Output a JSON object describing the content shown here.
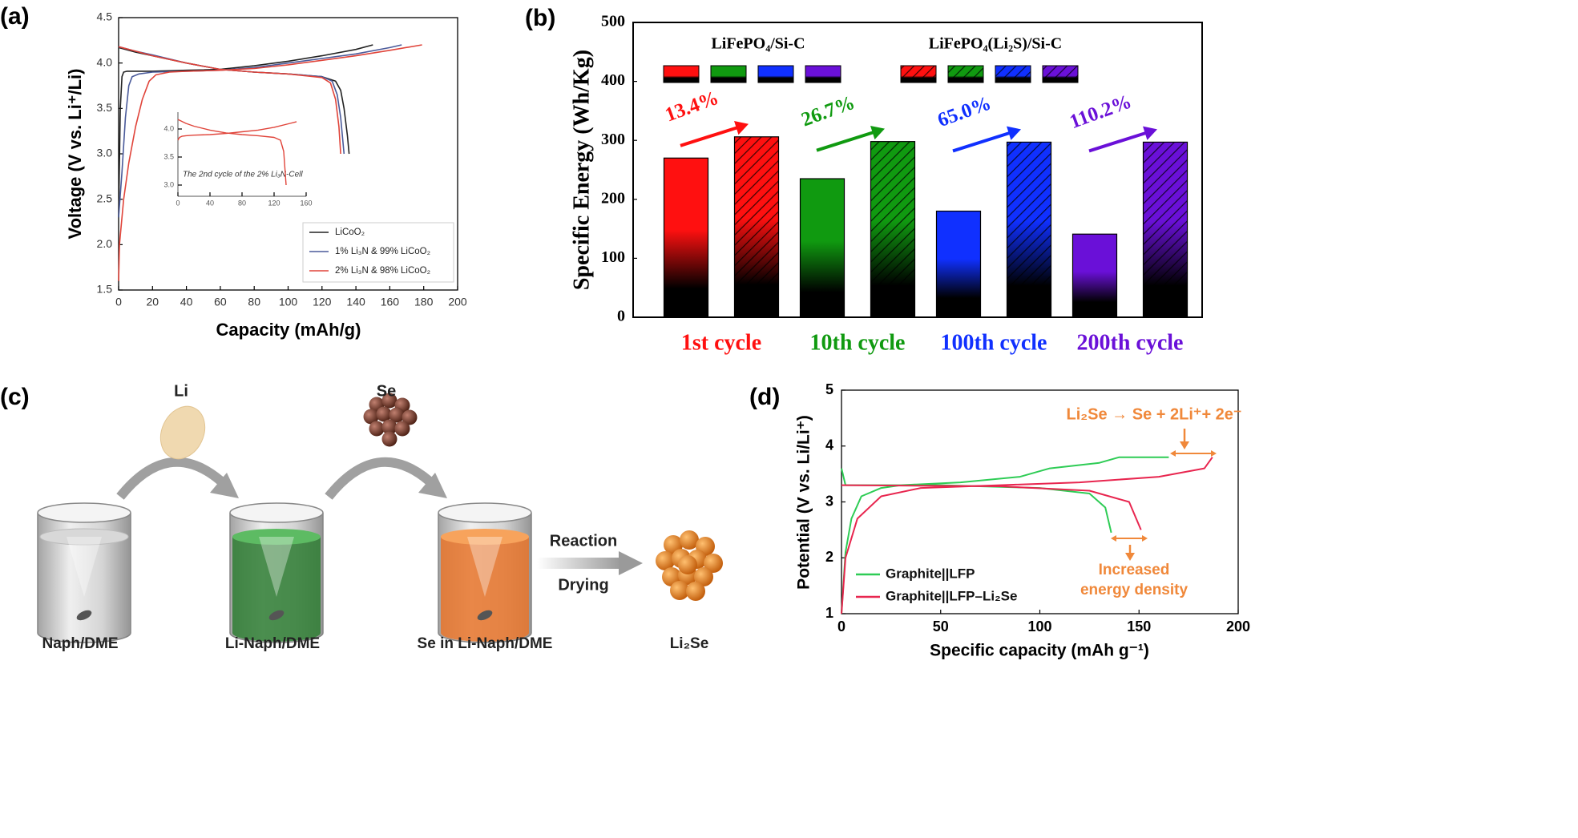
{
  "chart_data": [
    {
      "type": "line",
      "panel_label": "(a)",
      "x_label": "Capacity (mAh/g)",
      "y_label": "Voltage (V vs. Li⁺/Li)",
      "xlim": [
        0,
        200
      ],
      "xticks": [
        0,
        20,
        40,
        60,
        80,
        100,
        120,
        140,
        160,
        180,
        200
      ],
      "ylim": [
        1.5,
        4.5
      ],
      "yticks": [
        1.5,
        {
          "value": 2,
          "label": "2.0"
        },
        2.5,
        {
          "value": 3,
          "label": "3.0"
        },
        3.5,
        {
          "value": 4,
          "label": "4.0"
        },
        4.5
      ],
      "legend": "lower right",
      "series": [
        {
          "name": "LiCoO₂",
          "color": "#222222",
          "x": [
            0,
            1,
            2,
            3,
            5,
            10,
            20,
            40,
            60,
            80,
            100,
            120,
            140,
            150,
            null,
            0,
            10,
            20,
            40,
            60,
            80,
            100,
            120,
            128,
            131,
            133,
            135,
            136
          ],
          "values": [
            2.3,
            3.5,
            3.85,
            3.9,
            3.91,
            3.91,
            3.91,
            3.92,
            3.93,
            3.97,
            4.02,
            4.08,
            4.15,
            4.2,
            null,
            4.17,
            4.12,
            4.08,
            4.0,
            3.93,
            3.9,
            3.88,
            3.85,
            3.8,
            3.7,
            3.5,
            3.2,
            3.0
          ]
        },
        {
          "name": "1% Li₃N & 99% LiCoO₂",
          "color": "#4a5a9a",
          "x": [
            0,
            2,
            4,
            6,
            8,
            12,
            20,
            40,
            60,
            80,
            100,
            120,
            140,
            160,
            167,
            null,
            0,
            10,
            20,
            40,
            60,
            80,
            100,
            120,
            126,
            129,
            131,
            132,
            133
          ],
          "values": [
            2.3,
            2.8,
            3.4,
            3.75,
            3.85,
            3.88,
            3.9,
            3.91,
            3.92,
            3.95,
            4.0,
            4.05,
            4.1,
            4.17,
            4.2,
            null,
            4.18,
            4.13,
            4.09,
            4.0,
            3.93,
            3.9,
            3.88,
            3.85,
            3.8,
            3.65,
            3.4,
            3.2,
            3.0
          ]
        },
        {
          "name": "2% Li₃N & 98% LiCoO₂",
          "color": "#e0443a",
          "x": [
            0,
            0.5,
            1,
            3,
            6,
            10,
            14,
            18,
            22,
            30,
            40,
            60,
            80,
            100,
            120,
            140,
            160,
            179,
            null,
            0,
            10,
            20,
            40,
            60,
            80,
            100,
            120,
            125,
            128,
            130,
            131
          ],
          "values": [
            1.6,
            2.0,
            2.1,
            2.5,
            2.9,
            3.3,
            3.6,
            3.8,
            3.87,
            3.9,
            3.91,
            3.92,
            3.94,
            3.98,
            4.03,
            4.08,
            4.14,
            4.2,
            null,
            4.18,
            4.13,
            4.08,
            4.0,
            3.93,
            3.9,
            3.88,
            3.84,
            3.78,
            3.6,
            3.3,
            3.0
          ]
        }
      ]
    },
    {
      "type": "line",
      "annotation": "The 2nd cycle of the 2% Li₃N-Cell",
      "xlim": [
        0,
        160
      ],
      "xticks": [
        0,
        40,
        80,
        120,
        160
      ],
      "ylim": [
        2.8,
        4.3
      ],
      "yticks": [
        {
          "value": 3,
          "label": "3.0"
        },
        3.5,
        {
          "value": 4,
          "label": "4.0"
        }
      ],
      "series": [
        {
          "color": "#e0443a",
          "x": [
            0,
            2,
            5,
            10,
            20,
            40,
            60,
            80,
            100,
            120,
            140,
            148,
            null,
            0,
            10,
            20,
            40,
            60,
            80,
            100,
            120,
            128,
            132,
            135
          ],
          "values": [
            3.8,
            3.85,
            3.87,
            3.88,
            3.89,
            3.9,
            3.92,
            3.95,
            3.98,
            4.03,
            4.1,
            4.13,
            null,
            4.17,
            4.1,
            4.05,
            3.98,
            3.93,
            3.9,
            3.88,
            3.85,
            3.8,
            3.6,
            3.0
          ]
        }
      ]
    },
    {
      "type": "bar",
      "panel_label": "(b)",
      "y_label": "Specific Energy (Wh/Kg)",
      "categories": [
        "1st cycle",
        "10th cycle",
        "100th cycle",
        "200th cycle"
      ],
      "colors": [
        "#ff1010",
        "#109a10",
        "#1030ff",
        "#6a10d8"
      ],
      "ylim": [
        0,
        500
      ],
      "yticks": [
        0,
        100,
        200,
        300,
        400,
        500
      ],
      "annotations": [
        "13.4%",
        "26.7%",
        "65.0%",
        "110.2%"
      ],
      "series": [
        {
          "name": "LiFePO₄/Si-C",
          "hatched": false,
          "values": [
            270,
            235,
            180,
            141
          ]
        },
        {
          "name": "LiFePO₄(Li₂S)/Si-C",
          "hatched": true,
          "values": [
            306,
            298,
            297,
            297
          ]
        }
      ]
    },
    {
      "type": "line",
      "panel_label": "(d)",
      "x_label": "Specific capacity (mAh g⁻¹)",
      "y_label": "Potential (V vs. Li/Li⁺)",
      "xlim": [
        0,
        200
      ],
      "xticks": [
        0,
        50,
        100,
        150,
        200
      ],
      "ylim": [
        1,
        5
      ],
      "yticks": [
        1,
        2,
        3,
        4,
        5
      ],
      "legend": "lower left",
      "annotations": [
        "Li₂Se → Se + 2Li⁺+ 2e⁻",
        "Increased",
        "energy density"
      ],
      "series": [
        {
          "name": "Graphite||LFP",
          "color": "#2ecc55",
          "x": [
            0,
            2,
            5,
            10,
            20,
            30,
            60,
            90,
            105,
            130,
            140,
            165,
            null,
            0,
            2,
            50,
            100,
            125,
            133,
            136
          ],
          "values": [
            1.0,
            2.1,
            2.7,
            3.1,
            3.25,
            3.3,
            3.35,
            3.45,
            3.6,
            3.7,
            3.8,
            3.8,
            null,
            3.6,
            3.3,
            3.3,
            3.25,
            3.15,
            2.9,
            2.45
          ]
        },
        {
          "name": "Graphite||LFP–Li₂Se",
          "color": "#e8264f",
          "x": [
            0,
            2,
            8,
            20,
            40,
            80,
            120,
            160,
            183,
            187,
            null,
            0,
            80,
            125,
            145,
            151
          ],
          "values": [
            1.0,
            2.0,
            2.7,
            3.1,
            3.25,
            3.3,
            3.35,
            3.45,
            3.6,
            3.8,
            null,
            3.3,
            3.28,
            3.2,
            3.0,
            2.5
          ]
        }
      ]
    }
  ],
  "diagram": {
    "panel_label": "(c)",
    "reagents": [
      "Li",
      "Se"
    ],
    "steps": [
      "Reaction",
      "Drying"
    ],
    "labels": [
      "Naph/DME",
      "Li-Naph/DME",
      "Se in Li-Naph/DME",
      "Li₂Se"
    ]
  }
}
